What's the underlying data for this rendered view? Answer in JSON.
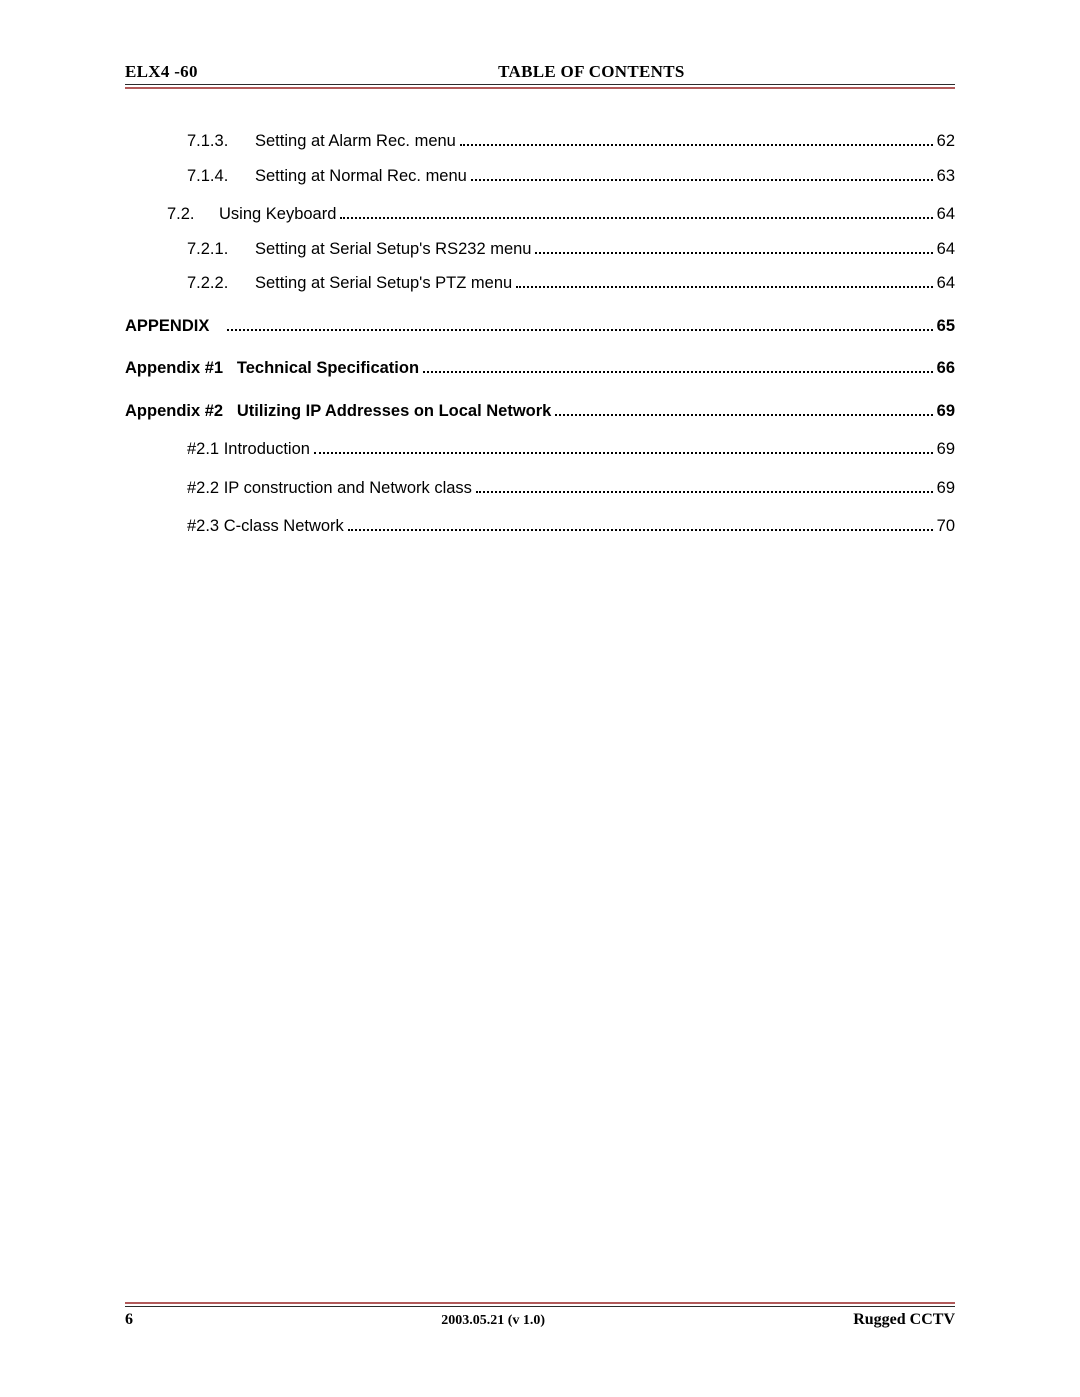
{
  "colors": {
    "rule_dark": "#2b2b2b",
    "rule_red": "#b15a5a",
    "text": "#000000",
    "background": "#ffffff"
  },
  "header": {
    "left": "ELX4 -60",
    "center": "TABLE OF CONTENTS"
  },
  "toc": [
    {
      "indent": 2,
      "num": "7.1.3.",
      "label": "Setting at Alarm Rec. menu ",
      "page": "62",
      "bold": false,
      "gap": "first"
    },
    {
      "indent": 2,
      "num": "7.1.4.",
      "label": "Setting at Normal Rec. menu ",
      "page": "63",
      "bold": false,
      "gap": "small"
    },
    {
      "indent": 1,
      "num": "7.2.",
      "label": "Using Keyboard",
      "page": "64",
      "bold": false,
      "gap": "med"
    },
    {
      "indent": 2,
      "num": "7.2.1.",
      "label": "Setting at Serial Setup's RS232 menu",
      "page": "64",
      "bold": false,
      "gap": "small"
    },
    {
      "indent": 2,
      "num": "7.2.2.",
      "label": "Setting at Serial Setup's PTZ menu",
      "page": "64",
      "bold": false,
      "gap": "small"
    },
    {
      "indent": 0,
      "num": "APPENDIX",
      "label": "",
      "page": "65",
      "bold": true,
      "gap": "large"
    },
    {
      "indent": 0,
      "num": "Appendix #1",
      "label": "Technical Specification",
      "page": "66",
      "bold": true,
      "gap": "large"
    },
    {
      "indent": 0,
      "num": "Appendix #2",
      "label": "Utilizing IP Addresses on Local Network",
      "page": "69",
      "bold": true,
      "gap": "large"
    },
    {
      "indent": 3,
      "num": "",
      "label": "#2.1 Introduction",
      "page": "69",
      "bold": false,
      "gap": "med"
    },
    {
      "indent": 3,
      "num": "",
      "label": "#2.2 IP construction and Network class",
      "page": "69",
      "bold": false,
      "gap": "med"
    },
    {
      "indent": 3,
      "num": "",
      "label": "#2.3 C-class Network ",
      "page": "70",
      "bold": false,
      "gap": "med"
    }
  ],
  "footer": {
    "page_number": "6",
    "center": "2003.05.21 (v 1.0)",
    "right": "Rugged CCTV"
  }
}
